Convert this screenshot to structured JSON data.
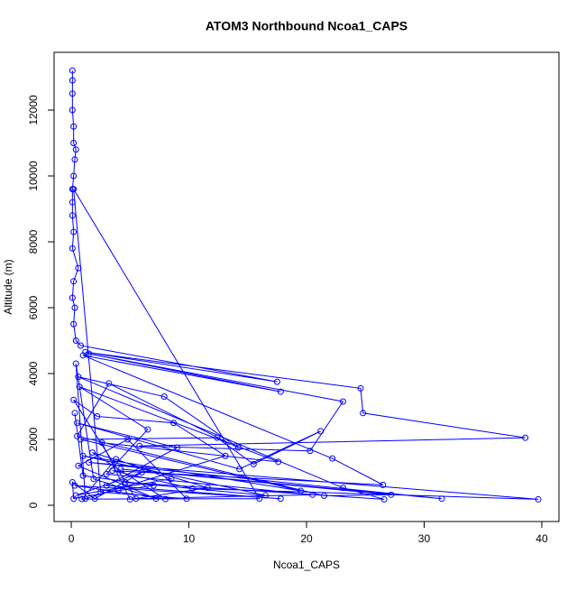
{
  "chart_data": {
    "type": "line",
    "title": "ATOM3 Northbound Ncoa1_CAPS",
    "x_label": "Ncoa1_CAPS",
    "y_label": "Altitude (m)",
    "x": [
      0.1,
      0.1,
      0.1,
      0.1,
      0.2,
      0.2,
      0.4,
      0.3,
      0.2,
      0.1,
      0.1,
      0.1,
      0.2,
      0.1,
      0.6,
      0.2,
      0.1,
      0.3,
      0.2,
      0.4,
      0.8,
      17.5,
      1.2,
      24.6,
      24.8,
      38.6,
      5.8,
      20.3,
      23.1,
      1.5,
      17.8,
      1.0,
      22.2,
      26.5,
      3.5,
      10.3,
      39.7,
      1.5,
      31.5,
      4.2,
      27.2,
      21.5,
      0.5,
      3.2,
      14.2,
      7.9,
      0.6,
      23.1,
      26.6,
      4.6,
      16.5,
      1.0,
      19.5,
      0.8,
      12.4,
      15.5,
      21.2,
      14.3,
      0.5,
      9.0,
      3.0,
      17.8,
      0.3,
      8.0,
      1.8,
      11.6,
      5.0,
      2.6,
      17.6,
      0.7,
      6.5,
      3.0,
      20.5,
      5.5,
      0.2,
      2.2,
      8.7,
      13.1,
      1.2,
      0.4,
      1.9,
      7.2,
      0.6,
      4.8,
      9.8,
      2.5,
      0.2,
      16.0,
      0.9,
      3.8,
      8.5,
      0.4,
      6.0,
      2.0,
      0.1,
      0.2,
      4.0,
      7.0,
      1.0,
      0.3
    ],
    "series": [
      {
        "name": "Altitude",
        "color": "#0000ff",
        "values": [
          13200,
          12900,
          12500,
          12000,
          11500,
          11000,
          10800,
          10500,
          10000,
          9600,
          9200,
          8800,
          8300,
          7800,
          7200,
          6800,
          6300,
          6000,
          5500,
          5000,
          4850,
          3750,
          4650,
          3550,
          2800,
          2050,
          1800,
          1650,
          3150,
          4600,
          3450,
          4550,
          1420,
          620,
          1050,
          510,
          180,
          1300,
          200,
          1100,
          320,
          290,
          2100,
          3700,
          1750,
          3300,
          3900,
          530,
          180,
          700,
          300,
          1500,
          440,
          2000,
          2050,
          1250,
          2250,
          1100,
          2500,
          1750,
          600,
          200,
          600,
          190,
          1600,
          530,
          180,
          1900,
          1320,
          3600,
          2300,
          950,
          320,
          200,
          3200,
          2700,
          2500,
          1500,
          200,
          4300,
          800,
          200,
          1200,
          2000,
          200,
          400,
          9600,
          200,
          190,
          1400,
          800,
          300,
          1000,
          200,
          700,
          200,
          450,
          600,
          900,
          2800
        ]
      }
    ],
    "xlim": [
      -1.46,
      41.46
    ],
    "ylim": [
      -493,
      13753
    ],
    "xticks": [
      0,
      10,
      20,
      30,
      40
    ],
    "yticks": [
      0,
      2000,
      4000,
      6000,
      8000,
      10000,
      12000
    ]
  }
}
